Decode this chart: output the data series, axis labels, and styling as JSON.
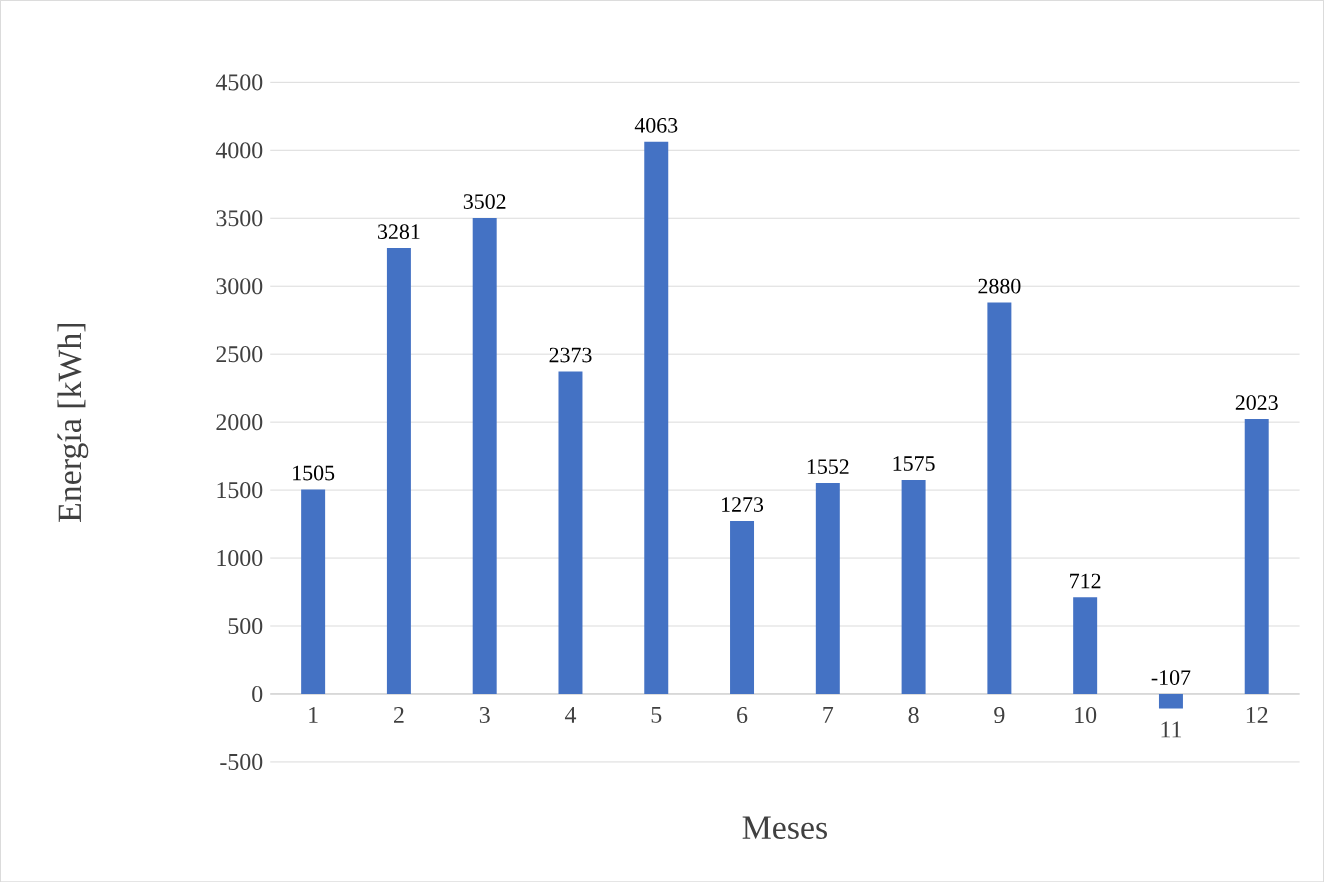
{
  "chart_data": {
    "type": "bar",
    "xlabel": "Meses",
    "ylabel": "Energía [kWh]",
    "categories": [
      "1",
      "2",
      "3",
      "4",
      "5",
      "6",
      "7",
      "8",
      "9",
      "10",
      "11",
      "12"
    ],
    "values": [
      1505,
      3281,
      3502,
      2373,
      4063,
      1273,
      1552,
      1575,
      2880,
      712,
      -107,
      2023
    ],
    "color": "#4472c4",
    "ylim": [
      -500,
      4500
    ],
    "yticks": [
      -500,
      0,
      500,
      1000,
      1500,
      2000,
      2500,
      3000,
      3500,
      4000,
      4500
    ],
    "grid": "y",
    "data_labels": true
  }
}
